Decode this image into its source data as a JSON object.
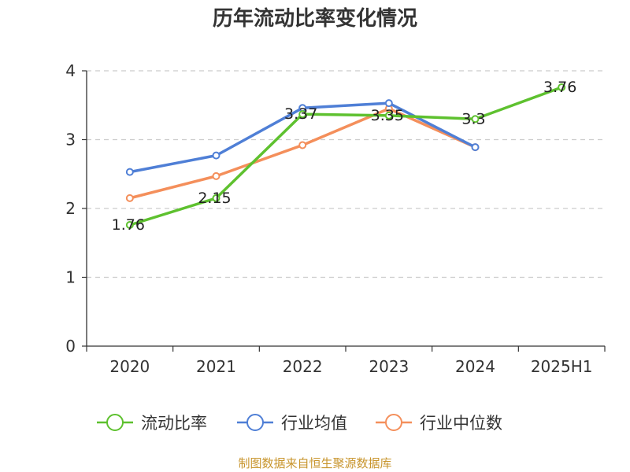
{
  "chart_data": {
    "type": "line",
    "title": "历年流动比率变化情况",
    "categories": [
      "2020",
      "2021",
      "2022",
      "2023",
      "2024",
      "2025H1"
    ],
    "ylim": [
      0,
      4
    ],
    "yticks": [
      "0",
      "1",
      "2",
      "3",
      "4"
    ],
    "grid": true,
    "legend_position": "bottom",
    "series": [
      {
        "name": "流动比率",
        "color": "#5ec12f",
        "values": [
          1.76,
          2.15,
          3.37,
          3.35,
          3.3,
          3.76
        ],
        "labels": [
          "1.76",
          "2.15",
          "3.37",
          "3.35",
          "3.3",
          "3.76"
        ]
      },
      {
        "name": "行业均值",
        "color": "#4f7fd6",
        "values": [
          2.53,
          2.77,
          3.46,
          3.53,
          2.89,
          null
        ]
      },
      {
        "name": "行业中位数",
        "color": "#f48f5b",
        "values": [
          2.15,
          2.47,
          2.92,
          3.45,
          2.89,
          null
        ]
      }
    ],
    "source": "制图数据来自恒生聚源数据库"
  }
}
